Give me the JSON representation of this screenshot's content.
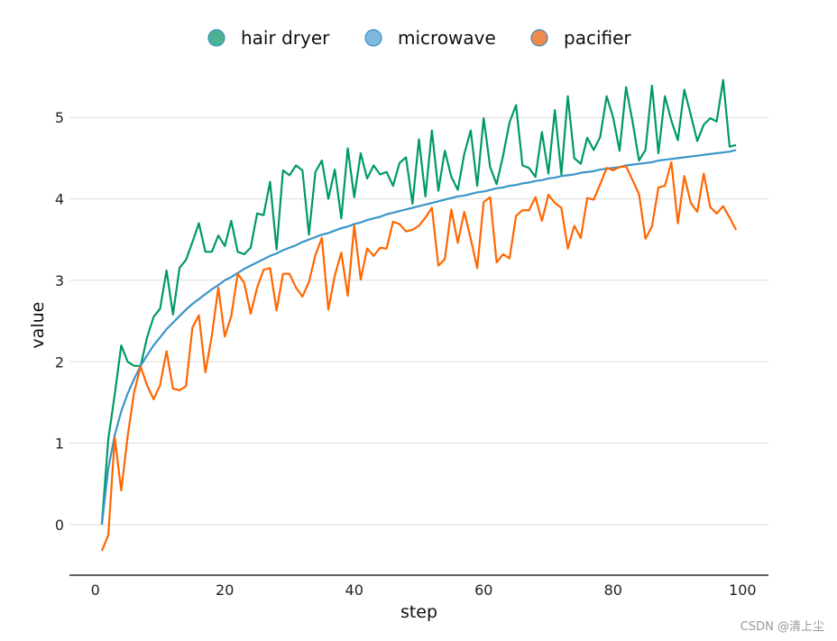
{
  "chart_data": {
    "type": "line",
    "xlabel": "step",
    "ylabel": "value",
    "xlim": [
      -4,
      104
    ],
    "ylim": [
      -0.62,
      5.6
    ],
    "xticks": [
      0,
      20,
      40,
      60,
      80,
      100
    ],
    "yticks": [
      0,
      1,
      2,
      3,
      4,
      5
    ],
    "grid": "horizontal",
    "legend_position": "top-center",
    "x": [
      1,
      2,
      3,
      4,
      5,
      6,
      7,
      8,
      9,
      10,
      11,
      12,
      13,
      14,
      15,
      16,
      17,
      18,
      19,
      20,
      21,
      22,
      23,
      24,
      25,
      26,
      27,
      28,
      29,
      30,
      31,
      32,
      33,
      34,
      35,
      36,
      37,
      38,
      39,
      40,
      41,
      42,
      43,
      44,
      45,
      46,
      47,
      48,
      49,
      50,
      51,
      52,
      53,
      54,
      55,
      56,
      57,
      58,
      59,
      60,
      61,
      62,
      63,
      64,
      65,
      66,
      67,
      68,
      69,
      70,
      71,
      72,
      73,
      74,
      75,
      76,
      77,
      78,
      79,
      80,
      81,
      82,
      83,
      84,
      85,
      86,
      87,
      88,
      89,
      90,
      91,
      92,
      93,
      94,
      95,
      96,
      97,
      98,
      99
    ],
    "series": [
      {
        "name": "hair dryer",
        "color": "#009966",
        "legend_color": "#4cb391",
        "values": [
          0.0,
          1.05,
          1.6,
          2.2,
          2.0,
          1.95,
          1.95,
          2.3,
          2.55,
          2.65,
          3.12,
          2.58,
          3.15,
          3.25,
          3.47,
          3.7,
          3.35,
          3.35,
          3.55,
          3.42,
          3.73,
          3.35,
          3.32,
          3.4,
          3.82,
          3.8,
          4.21,
          3.38,
          4.35,
          4.29,
          4.41,
          4.35,
          3.56,
          4.33,
          4.47,
          4.0,
          4.36,
          3.76,
          4.62,
          4.02,
          4.56,
          4.25,
          4.41,
          4.3,
          4.33,
          4.16,
          4.44,
          4.51,
          3.94,
          4.73,
          4.03,
          4.84,
          4.1,
          4.59,
          4.27,
          4.11,
          4.55,
          4.84,
          4.16,
          4.99,
          4.39,
          4.18,
          4.53,
          4.94,
          5.15,
          4.41,
          4.38,
          4.27,
          4.82,
          4.31,
          5.09,
          4.3,
          5.26,
          4.5,
          4.43,
          4.75,
          4.6,
          4.76,
          5.26,
          5.0,
          4.59,
          5.37,
          4.95,
          4.47,
          4.6,
          5.39,
          4.56,
          5.26,
          4.96,
          4.72,
          5.34,
          5.03,
          4.71,
          4.91,
          4.99,
          4.95,
          5.46,
          4.64,
          4.66
        ]
      },
      {
        "name": "microwave",
        "color": "#3a95c9",
        "legend_color": "#7fb7df",
        "values": [
          0.0,
          0.69,
          1.1,
          1.39,
          1.61,
          1.79,
          1.95,
          2.08,
          2.2,
          2.3,
          2.4,
          2.48,
          2.56,
          2.64,
          2.71,
          2.77,
          2.83,
          2.89,
          2.94,
          3.0,
          3.04,
          3.09,
          3.14,
          3.18,
          3.22,
          3.26,
          3.3,
          3.33,
          3.37,
          3.4,
          3.43,
          3.47,
          3.5,
          3.53,
          3.56,
          3.58,
          3.61,
          3.64,
          3.66,
          3.69,
          3.71,
          3.74,
          3.76,
          3.78,
          3.81,
          3.83,
          3.85,
          3.87,
          3.89,
          3.91,
          3.93,
          3.95,
          3.97,
          3.99,
          4.01,
          4.03,
          4.04,
          4.06,
          4.08,
          4.09,
          4.11,
          4.13,
          4.14,
          4.16,
          4.17,
          4.19,
          4.2,
          4.22,
          4.23,
          4.25,
          4.26,
          4.28,
          4.29,
          4.3,
          4.32,
          4.33,
          4.34,
          4.36,
          4.37,
          4.38,
          4.39,
          4.41,
          4.42,
          4.43,
          4.44,
          4.45,
          4.47,
          4.48,
          4.49,
          4.5,
          4.51,
          4.52,
          4.53,
          4.54,
          4.55,
          4.56,
          4.57,
          4.58,
          4.6
        ]
      },
      {
        "name": "pacifier",
        "color": "#ff6600",
        "legend_color": "#f08a4b",
        "values": [
          -0.32,
          -0.13,
          1.07,
          0.42,
          1.09,
          1.63,
          1.94,
          1.71,
          1.54,
          1.71,
          2.13,
          1.67,
          1.65,
          1.7,
          2.42,
          2.57,
          1.87,
          2.32,
          2.91,
          2.31,
          2.56,
          3.08,
          2.97,
          2.59,
          2.91,
          3.13,
          3.15,
          2.63,
          3.08,
          3.08,
          2.91,
          2.8,
          2.98,
          3.31,
          3.52,
          2.64,
          3.06,
          3.34,
          2.81,
          3.67,
          3.01,
          3.39,
          3.3,
          3.4,
          3.39,
          3.72,
          3.69,
          3.6,
          3.62,
          3.67,
          3.77,
          3.89,
          3.18,
          3.26,
          3.87,
          3.46,
          3.84,
          3.51,
          3.15,
          3.96,
          4.02,
          3.22,
          3.32,
          3.27,
          3.79,
          3.86,
          3.86,
          4.02,
          3.73,
          4.05,
          3.95,
          3.89,
          3.39,
          3.67,
          3.52,
          4.01,
          3.99,
          4.18,
          4.38,
          4.35,
          4.39,
          4.4,
          4.23,
          4.06,
          3.51,
          3.66,
          4.14,
          4.16,
          4.45,
          3.7,
          4.28,
          3.95,
          3.84,
          4.31,
          3.9,
          3.82,
          3.91,
          3.77,
          3.62
        ]
      }
    ]
  },
  "watermark": "CSDN @清上尘"
}
